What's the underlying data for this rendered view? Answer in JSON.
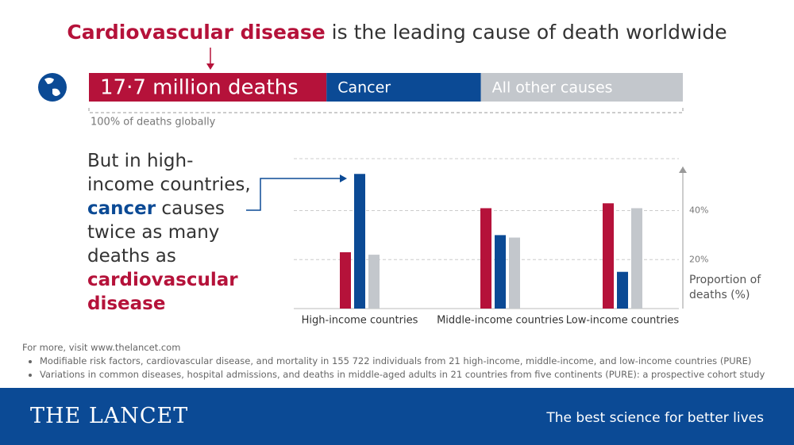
{
  "headline": {
    "highlight": "Cardiovascular disease",
    "rest": "is the leading cause of death worldwide"
  },
  "chart_data": [
    {
      "type": "share",
      "segments": [
        {
          "label": "17·7 million deaths",
          "value": 40,
          "color": "#b5123a"
        },
        {
          "label": "Cancer",
          "value": 26,
          "color": "#0b4a95"
        },
        {
          "label": "All other causes",
          "value": 34,
          "color": "#c3c7cc"
        }
      ],
      "note": "100% of deaths globally"
    },
    {
      "type": "bar",
      "categories": [
        "High-income countries",
        "Middle-income countries",
        "Low-income countries"
      ],
      "series": [
        {
          "color": "#b5123a",
          "values": [
            23,
            41,
            43
          ]
        },
        {
          "color": "#0b4a95",
          "values": [
            55,
            30,
            15
          ]
        },
        {
          "color": "#c3c7cc",
          "values": [
            22,
            29,
            41
          ]
        }
      ],
      "ylim": [
        0,
        58
      ],
      "yticks": [
        {
          "value": 20,
          "label": "20%"
        },
        {
          "value": 40,
          "label": "40%"
        }
      ],
      "ylabel": "Proportion of deaths (%)",
      "grid": true
    }
  ],
  "statement": {
    "parts": [
      "But in high-income countries,",
      "cancer",
      "causes twice as many deaths as",
      "cardiovascular disease"
    ]
  },
  "footer": {
    "visit": "For more, visit www.thelancet.com",
    "bullets": [
      "Modifiable risk factors, cardiovascular disease, and mortality in 155 722 individuals from 21 high-income, middle-income, and low-income countries (PURE)",
      "Variations in common diseases, hospital admissions, and deaths in middle-aged adults in 21 countries from five continents (PURE): a prospective cohort study"
    ]
  },
  "brand": {
    "name": "THE LANCET",
    "tagline": "The best science for better lives"
  }
}
